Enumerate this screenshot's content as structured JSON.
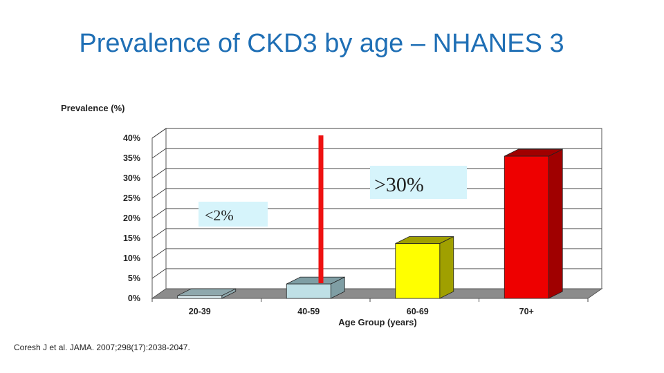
{
  "slide": {
    "title": "Prevalence of CKD3 by age – NHANES 3",
    "citation": "Coresh J et al. JAMA. 2007;298(17):2038-2047."
  },
  "chart_data": {
    "type": "bar",
    "ylabel": "Prevalence (%)",
    "xlabel": "Age Group (years)",
    "categories": [
      "20-39",
      "40-59",
      "60-69",
      "70+"
    ],
    "values": [
      0.7,
      3.6,
      13.7,
      35.5
    ],
    "ylim": [
      0,
      40
    ],
    "yticks": [
      0,
      5,
      10,
      15,
      20,
      25,
      30,
      35,
      40
    ],
    "ytick_labels": [
      "0%",
      "5%",
      "10%",
      "15%",
      "20%",
      "25%",
      "30%",
      "35%",
      "40%"
    ],
    "grid": true,
    "bar_colors": [
      "#ddeef2",
      "#bfe0e6",
      "#ffff00",
      "#ee0000"
    ],
    "bar_side_colors": [
      "#8fa8ad",
      "#7f9ea4",
      "#a0a000",
      "#a00000"
    ],
    "annotations": [
      {
        "text": "<2%",
        "background": "#d6f4fb"
      },
      {
        "text": ">30%",
        "background": "#d6f4fb"
      }
    ],
    "divider_color": "#ee1111"
  }
}
